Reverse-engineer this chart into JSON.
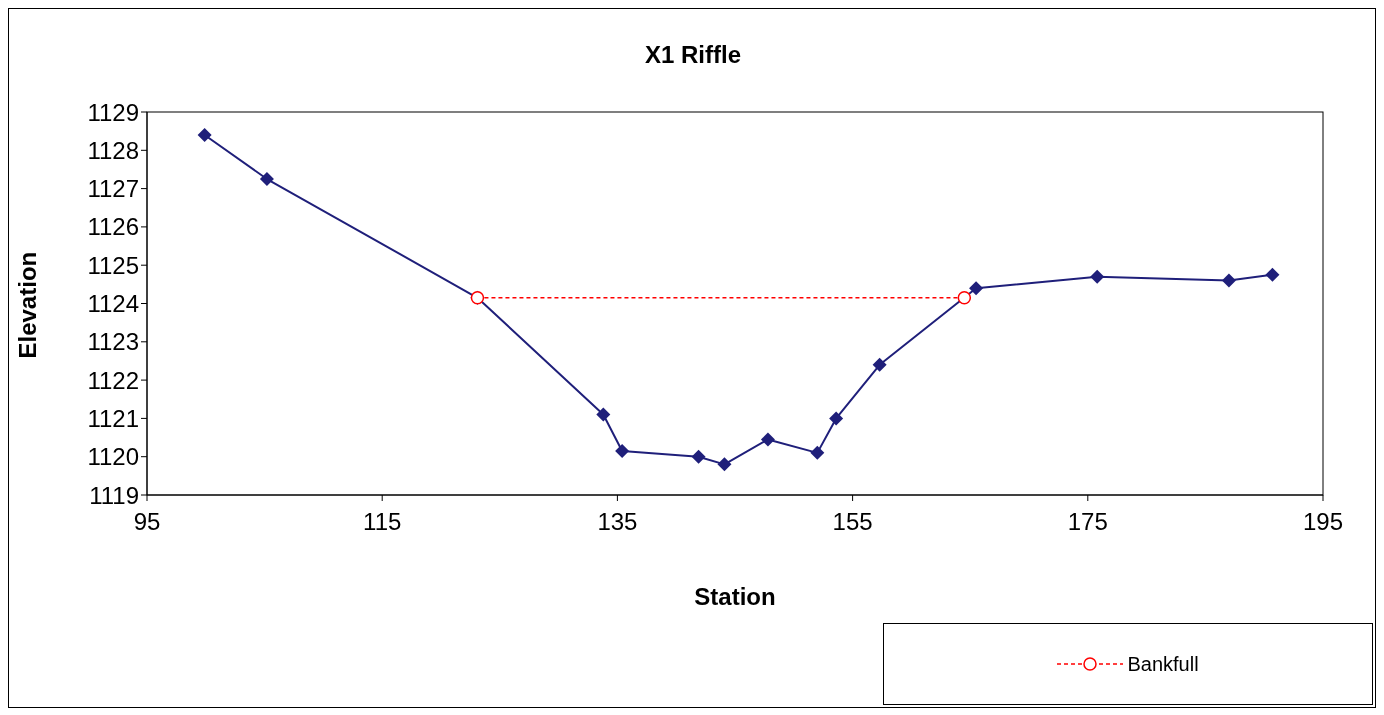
{
  "chart_data": {
    "type": "line",
    "title": "X1 Riffle",
    "xlabel": "Station",
    "ylabel": "Elevation",
    "xlim": [
      95,
      195
    ],
    "xticks": [
      95,
      115,
      135,
      155,
      175,
      195
    ],
    "ylim": [
      1119,
      1129
    ],
    "yticks": [
      1119,
      1120,
      1121,
      1122,
      1123,
      1124,
      1125,
      1126,
      1127,
      1128,
      1129
    ],
    "grid": false,
    "legend": "bottom right",
    "series": [
      {
        "color": "#1f1f7a",
        "marker": "diamond",
        "line_style": "solid",
        "x": [
          99.9,
          105.2,
          123.1,
          133.8,
          135.4,
          141.9,
          144.1,
          147.8,
          152.0,
          153.6,
          157.3,
          165.5,
          175.8,
          187.0,
          190.7
        ],
        "values": [
          1128.4,
          1127.25,
          1124.15,
          1121.1,
          1120.15,
          1120.0,
          1119.8,
          1120.45,
          1120.1,
          1121.0,
          1122.4,
          1124.4,
          1124.7,
          1124.6,
          1124.75
        ]
      },
      {
        "name": "Bankfull",
        "color": "#ff0000",
        "marker": "circle",
        "line_style": "dashed",
        "x": [
          123.1,
          164.5
        ],
        "values": [
          1124.15,
          1124.15
        ]
      }
    ]
  }
}
